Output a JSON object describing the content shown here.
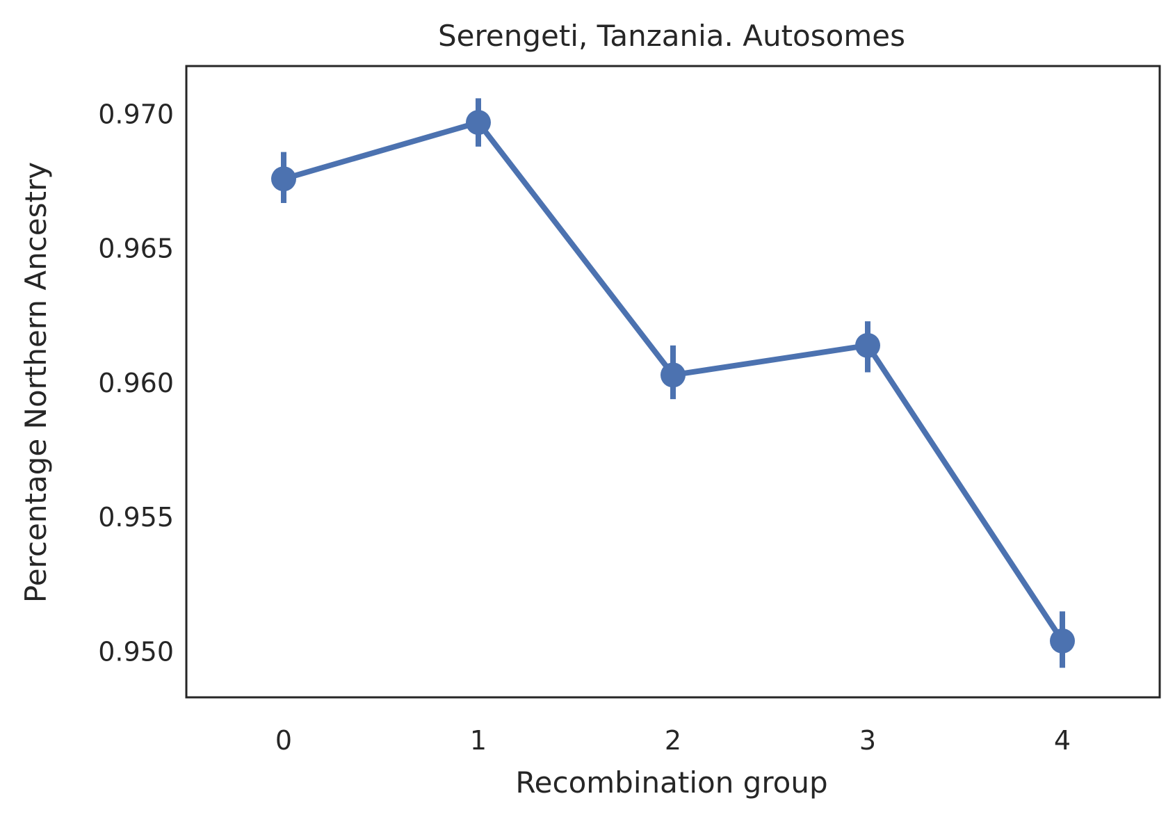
{
  "chart_data": {
    "type": "line",
    "title": "Serengeti, Tanzania. Autosomes",
    "xlabel": "Recombination group",
    "ylabel": "Percentage Northern Ancestry",
    "categories": [
      "0",
      "1",
      "2",
      "3",
      "4"
    ],
    "yticks": [
      0.95,
      0.955,
      0.96,
      0.965,
      0.97
    ],
    "ytick_labels": [
      "0.950",
      "0.955",
      "0.960",
      "0.965",
      "0.970"
    ],
    "ylim": [
      0.9483,
      0.9718
    ],
    "xlim": [
      -0.5,
      4.5
    ],
    "grid": false,
    "series": [
      {
        "name": "Northern ancestry",
        "color": "#4c72b0",
        "values": [
          0.9676,
          0.9697,
          0.9603,
          0.9614,
          0.9504
        ],
        "ci_low": [
          0.9667,
          0.9688,
          0.9594,
          0.9604,
          0.9494
        ],
        "ci_high": [
          0.9686,
          0.9706,
          0.9614,
          0.9623,
          0.9515
        ]
      }
    ]
  }
}
